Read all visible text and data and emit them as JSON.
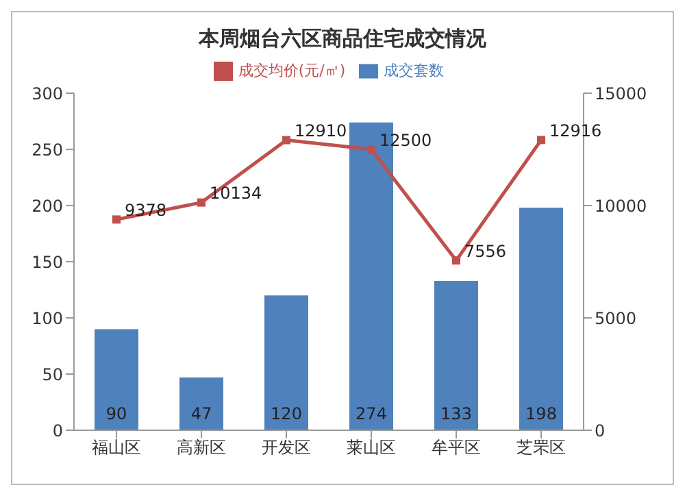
{
  "chart_data": {
    "type": "bar",
    "title": "本周烟台六区商品住宅成交情况",
    "categories": [
      "福山区",
      "高新区",
      "开发区",
      "莱山区",
      "牟平区",
      "芝罘区"
    ],
    "series": [
      {
        "name": "成交套数",
        "color": "#4f81bd",
        "values": [
          90,
          47,
          120,
          274,
          133,
          198
        ]
      },
      {
        "name": "成交均价(元/㎡)",
        "type": "line",
        "axis": "y2",
        "color": "#c0504d",
        "marker": "square",
        "values": [
          9378,
          10134,
          12910,
          12500,
          7556,
          12916
        ]
      }
    ],
    "ylim": [
      0,
      300
    ],
    "yticks": [
      0,
      50,
      100,
      150,
      200,
      250,
      300
    ],
    "y2lim": [
      0,
      15000
    ],
    "y2ticks": [
      0,
      5000,
      10000,
      15000
    ],
    "data_labels": true,
    "legend": "top"
  }
}
